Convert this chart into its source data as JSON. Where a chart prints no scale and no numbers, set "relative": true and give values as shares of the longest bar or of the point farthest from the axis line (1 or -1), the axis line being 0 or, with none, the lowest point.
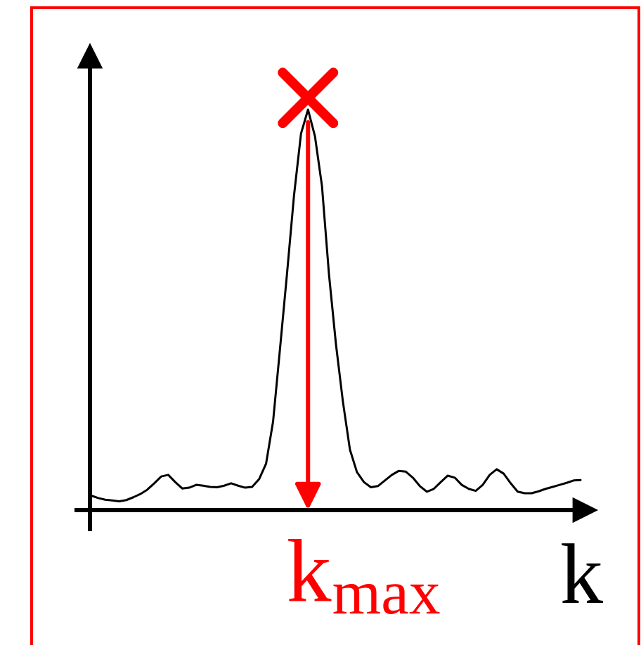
{
  "chart_data": {
    "type": "line",
    "xlabel": "k",
    "relative": true,
    "annotations": [
      "k$_{max}$"
    ],
    "categories": [
      null,
      null,
      null,
      null,
      null,
      null,
      null,
      null,
      null,
      null,
      null,
      null,
      null,
      null,
      null,
      null,
      null,
      null,
      null,
      null,
      null,
      null,
      null,
      null,
      null,
      null,
      null,
      null,
      null,
      null,
      null,
      null,
      null,
      null,
      null,
      null,
      null,
      null,
      null,
      null,
      null,
      null,
      null,
      null,
      null,
      null,
      null,
      null,
      null,
      null,
      null,
      null,
      null,
      null,
      null,
      null,
      null,
      null,
      null,
      null,
      null,
      null,
      null,
      null,
      null,
      null,
      null,
      null,
      null,
      null,
      null
    ],
    "series": [
      {
        "color": "#000000",
        "values": [
          0.036,
          0.03,
          0.026,
          0.024,
          0.022,
          0.025,
          0.032,
          0.04,
          0.051,
          0.067,
          0.084,
          0.088,
          0.07,
          0.054,
          0.056,
          0.063,
          0.061,
          0.058,
          0.057,
          0.061,
          0.067,
          0.061,
          0.056,
          0.058,
          0.077,
          0.116,
          0.221,
          0.404,
          0.591,
          0.786,
          0.94,
          1.0,
          0.933,
          0.809,
          0.589,
          0.414,
          0.27,
          0.151,
          0.095,
          0.07,
          0.057,
          0.06,
          0.074,
          0.088,
          0.098,
          0.096,
          0.081,
          0.06,
          0.046,
          0.053,
          0.07,
          0.086,
          0.081,
          0.063,
          0.053,
          0.048,
          0.063,
          0.088,
          0.102,
          0.091,
          0.067,
          0.046,
          0.042,
          0.042,
          0.047,
          0.053,
          0.058,
          0.063,
          0.068,
          0.074,
          0.075
        ]
      }
    ]
  }
}
